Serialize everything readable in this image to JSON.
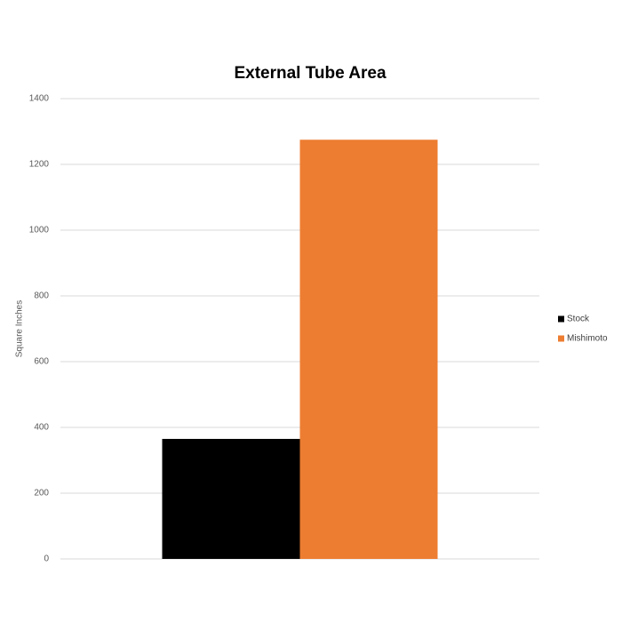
{
  "chart_data": {
    "type": "bar",
    "title": "External Tube Area",
    "y_label": "Square Inches",
    "categories": [
      null
    ],
    "series": [
      {
        "name": "Stock",
        "color": "#000000",
        "values": [
          365
        ]
      },
      {
        "name": "Mishimoto",
        "color": "#ed7d31",
        "values": [
          1275
        ]
      }
    ],
    "ylim": [
      0,
      1400
    ],
    "yticks": [
      0,
      200,
      400,
      600,
      800,
      1000,
      1200,
      1400
    ],
    "grid": true,
    "legend": "right"
  }
}
